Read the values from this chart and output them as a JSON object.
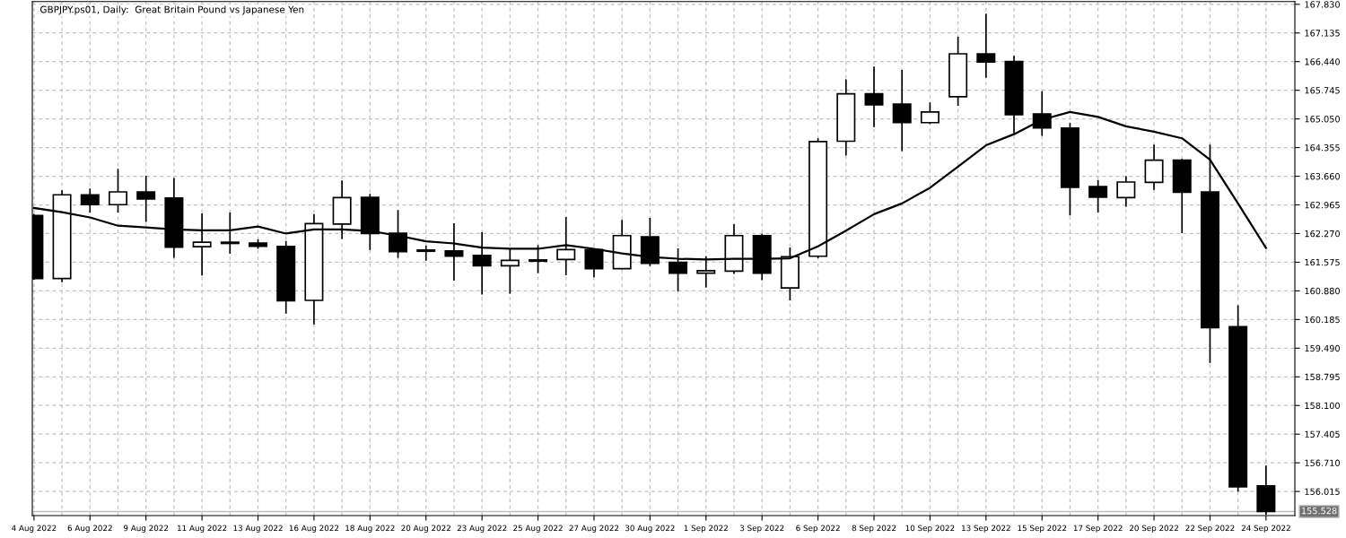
{
  "chart_data": {
    "type": "candlestick",
    "title": "GBPJPY.ps01, Daily:  Great Britain Pound vs Japanese Yen",
    "categories": [
      "4 Aug 2022",
      null,
      "6 Aug 2022",
      null,
      "9 Aug 2022",
      null,
      "11 Aug 2022",
      null,
      "13 Aug 2022",
      null,
      "16 Aug 2022",
      null,
      "18 Aug 2022",
      null,
      "20 Aug 2022",
      null,
      "23 Aug 2022",
      null,
      "25 Aug 2022",
      null,
      "27 Aug 2022",
      null,
      "30 Aug 2022",
      null,
      "1 Sep 2022",
      null,
      "3 Sep 2022",
      null,
      "6 Sep 2022",
      null,
      "8 Sep 2022",
      null,
      "10 Sep 2022",
      null,
      "13 Sep 2022",
      null,
      "15 Sep 2022",
      null,
      "17 Sep 2022",
      null,
      "20 Sep 2022",
      null,
      "22 Sep 2022",
      null,
      "24 Sep 2022"
    ],
    "ohlc": [
      [
        162.71,
        162.75,
        161.15,
        161.18
      ],
      [
        161.18,
        163.32,
        161.09,
        163.21
      ],
      [
        163.21,
        163.36,
        162.78,
        162.97
      ],
      [
        162.97,
        163.84,
        162.78,
        163.28
      ],
      [
        163.28,
        163.67,
        162.55,
        163.11
      ],
      [
        163.13,
        163.62,
        161.68,
        161.94
      ],
      [
        161.95,
        162.76,
        161.25,
        162.06
      ],
      [
        162.06,
        162.78,
        161.78,
        162.03
      ],
      [
        162.04,
        162.13,
        161.9,
        161.96
      ],
      [
        161.96,
        162.09,
        160.33,
        160.64
      ],
      [
        160.65,
        162.74,
        160.07,
        162.51
      ],
      [
        162.5,
        163.56,
        162.14,
        163.14
      ],
      [
        163.15,
        163.23,
        161.87,
        162.27
      ],
      [
        162.28,
        162.84,
        161.68,
        161.83
      ],
      [
        161.87,
        161.98,
        161.61,
        161.84
      ],
      [
        161.85,
        162.52,
        161.13,
        161.72
      ],
      [
        161.74,
        162.3,
        160.79,
        161.49
      ],
      [
        161.49,
        161.9,
        160.81,
        161.62
      ],
      [
        161.63,
        161.99,
        161.31,
        161.6
      ],
      [
        161.64,
        162.67,
        161.26,
        161.88
      ],
      [
        161.88,
        161.9,
        161.21,
        161.42
      ],
      [
        161.42,
        162.6,
        161.4,
        162.22
      ],
      [
        162.19,
        162.65,
        161.48,
        161.55
      ],
      [
        161.57,
        161.91,
        160.87,
        161.31
      ],
      [
        161.31,
        161.72,
        160.96,
        161.37
      ],
      [
        161.36,
        162.5,
        161.29,
        162.22
      ],
      [
        162.22,
        162.26,
        161.14,
        161.31
      ],
      [
        160.95,
        161.93,
        160.65,
        161.71
      ],
      [
        161.72,
        164.58,
        161.67,
        164.5
      ],
      [
        164.51,
        166.01,
        164.16,
        165.66
      ],
      [
        165.66,
        166.32,
        164.85,
        165.39
      ],
      [
        165.41,
        166.24,
        164.27,
        164.96
      ],
      [
        164.96,
        165.45,
        164.93,
        165.22
      ],
      [
        165.59,
        167.04,
        165.37,
        166.63
      ],
      [
        166.63,
        167.6,
        166.05,
        166.43
      ],
      [
        166.44,
        166.58,
        164.7,
        165.15
      ],
      [
        165.17,
        165.72,
        164.64,
        164.83
      ],
      [
        164.83,
        164.95,
        162.71,
        163.39
      ],
      [
        163.41,
        163.57,
        162.78,
        163.15
      ],
      [
        163.14,
        163.66,
        162.92,
        163.52
      ],
      [
        163.51,
        164.43,
        163.33,
        164.05
      ],
      [
        164.05,
        164.08,
        162.28,
        163.27
      ],
      [
        163.28,
        164.43,
        159.13,
        159.99
      ],
      [
        160.01,
        160.53,
        156.01,
        156.13
      ],
      [
        156.15,
        156.64,
        155.45,
        155.528
      ]
    ],
    "colors": [
      "#000000",
      "#ffffff",
      "#000000",
      "#ffffff",
      "#000000",
      "#000000",
      "#ffffff",
      "#000000",
      "#000000",
      "#000000",
      "#ffffff",
      "#ffffff",
      "#000000",
      "#000000",
      "#000000",
      "#000000",
      "#000000",
      "#ffffff",
      "#000000",
      "#ffffff",
      "#000000",
      "#ffffff",
      "#000000",
      "#000000",
      "#ffffff",
      "#ffffff",
      "#000000",
      "#ffffff",
      "#ffffff",
      "#ffffff",
      "#000000",
      "#000000",
      "#ffffff",
      "#ffffff",
      "#000000",
      "#000000",
      "#000000",
      "#000000",
      "#000000",
      "#ffffff",
      "#ffffff",
      "#000000",
      "#000000",
      "#000000",
      "#000000"
    ],
    "series": [
      {
        "type": "line",
        "color": "#000000",
        "values": [
          162.89,
          162.79,
          162.66,
          162.46,
          162.42,
          162.37,
          162.35,
          162.35,
          162.44,
          162.27,
          162.37,
          162.37,
          162.33,
          162.22,
          162.08,
          162.03,
          161.93,
          161.9,
          161.9,
          161.99,
          161.9,
          161.79,
          161.7,
          161.66,
          161.64,
          161.66,
          161.66,
          161.67,
          161.96,
          162.34,
          162.74,
          163.0,
          163.38,
          163.89,
          164.41,
          164.68,
          165.03,
          165.22,
          165.1,
          164.87,
          164.74,
          164.58,
          164.06,
          163.0,
          161.92
        ]
      }
    ],
    "ylim": [
      155.43,
      167.895
    ],
    "yticks": [
      {
        "value": 167.83,
        "label": "167.830"
      },
      167.135,
      {
        "value": 166.44,
        "label": "166.440"
      },
      165.745,
      {
        "value": 165.05,
        "label": "165.050"
      },
      164.355,
      {
        "value": 163.66,
        "label": "163.660"
      },
      162.965,
      {
        "value": 162.27,
        "label": "162.270"
      },
      161.575,
      {
        "value": 160.88,
        "label": "160.880"
      },
      160.185,
      {
        "value": 159.49,
        "label": "159.490"
      },
      158.795,
      {
        "value": 158.1,
        "label": "158.100"
      },
      157.405,
      {
        "value": 156.71,
        "label": "156.710"
      },
      156.015
    ],
    "ref_lines": [
      {
        "axis": "y",
        "value": 155.528,
        "label": "155.528",
        "color": "#c0c0c0"
      }
    ],
    "grid": true,
    "legend": false
  }
}
